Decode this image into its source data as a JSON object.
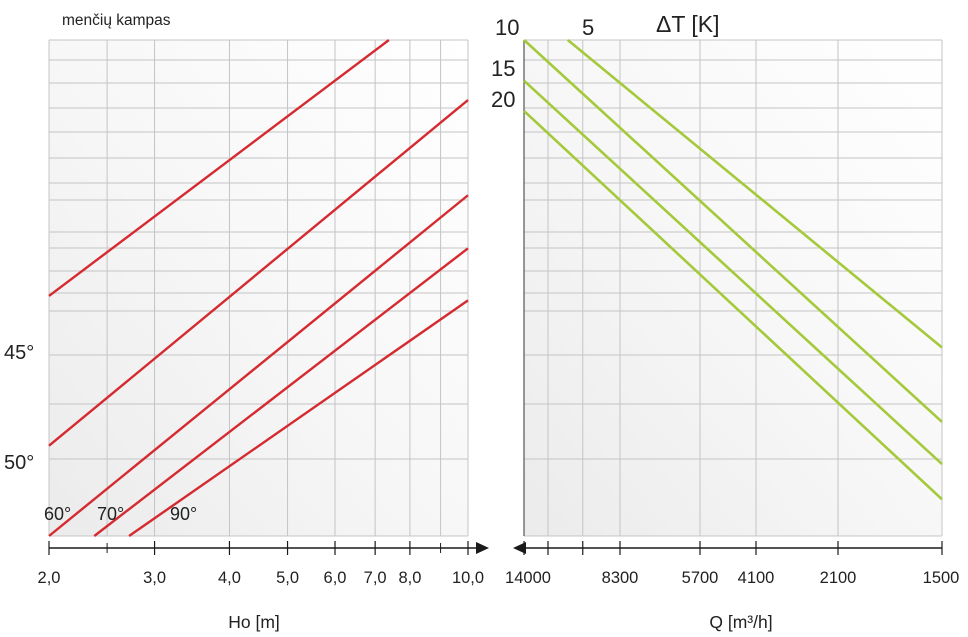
{
  "chart_data": [
    {
      "type": "line",
      "title": "menčių kampas",
      "xlabel": "Ho [m]",
      "x_scale": "log",
      "xlim": [
        2.0,
        10.0
      ],
      "x_ticks": [
        "2,0",
        "3,0",
        "4,0",
        "5,0",
        "6,0",
        "7,0",
        "8,0",
        "10,0"
      ],
      "side_labels": [
        "45°",
        "50°"
      ],
      "colors": {
        "series": "#d42a30",
        "grid": "#c4c4c4",
        "axis": "#1a1a1a"
      },
      "series": [
        {
          "name": "45°",
          "start": [
            2.0,
            0.484
          ],
          "end": [
            7.38,
            1.0
          ]
        },
        {
          "name": "50°",
          "start": [
            2.0,
            0.182
          ],
          "end": [
            10.0,
            0.879
          ]
        },
        {
          "name": "60°",
          "start": [
            2.0,
            0.0
          ],
          "end": [
            10.0,
            0.687
          ]
        },
        {
          "name": "70°",
          "start": [
            2.38,
            0.0
          ],
          "end": [
            10.0,
            0.58
          ]
        },
        {
          "name": "90°",
          "start": [
            2.72,
            0.0
          ],
          "end": [
            10.0,
            0.475
          ]
        }
      ],
      "curve_labels": [
        "60°",
        "70°",
        "90°"
      ]
    },
    {
      "type": "line",
      "title": "ΔT [K]",
      "xlabel": "Q [m³/h]",
      "x_direction": "decreasing",
      "xlim": [
        14000,
        1500
      ],
      "x_ticks": [
        "14000",
        "8300",
        "5700",
        "4100",
        "2100",
        "1500"
      ],
      "colors": {
        "series": "#a4c93a",
        "grid": "#c4c4c4",
        "axis": "#1a1a1a"
      },
      "series": [
        {
          "name": "5",
          "start": [
            10780,
            1.0
          ],
          "end": [
            1500,
            0.38
          ]
        },
        {
          "name": "10",
          "start": [
            14000,
            1.0
          ],
          "end": [
            1500,
            0.23
          ]
        },
        {
          "name": "15",
          "start": [
            14000,
            0.918
          ],
          "end": [
            1500,
            0.145
          ]
        },
        {
          "name": "20",
          "start": [
            14000,
            0.857
          ],
          "end": [
            1500,
            0.074
          ]
        }
      ]
    }
  ]
}
